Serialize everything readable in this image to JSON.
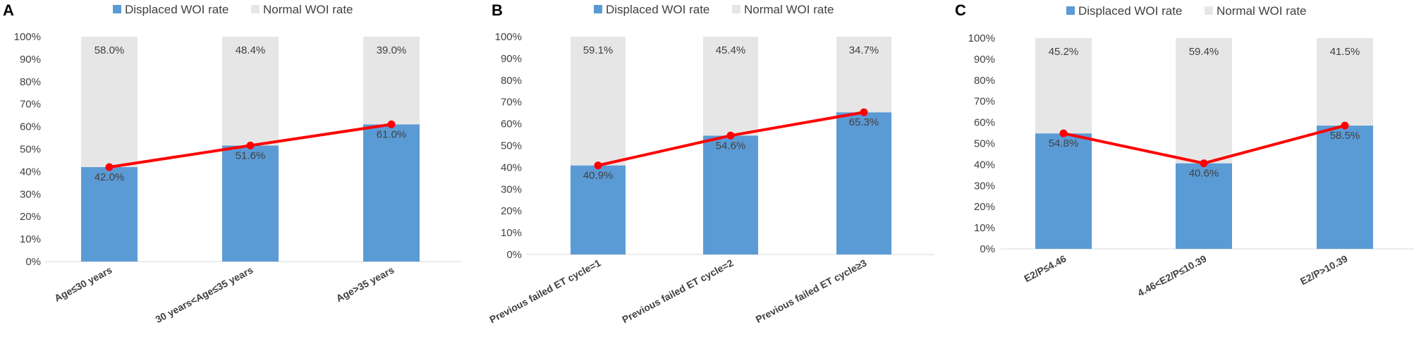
{
  "colors": {
    "displaced": "#5b9bd5",
    "normal": "#e7e6e6",
    "trend_line": "#ff0000",
    "axis_text": "#404040",
    "bar_label": "#404040",
    "axis_line": "#d9d9d9"
  },
  "chart_data": [
    {
      "type": "bar",
      "stacked": true,
      "panel_label": "A",
      "legend": [
        "Displaced WOI rate",
        "Normal WOI rate"
      ],
      "legend_placement": "top-center",
      "categories": [
        "Age≤30 years",
        "30 years<Age≤35 years",
        "Age>35 years"
      ],
      "series": [
        {
          "name": "Displaced WOI rate",
          "values": [
            42.0,
            51.6,
            61.0
          ],
          "labels": [
            "42.0%",
            "51.6%",
            "61.0%"
          ]
        },
        {
          "name": "Normal WOI rate",
          "values": [
            58.0,
            48.4,
            39.0
          ],
          "labels": [
            "58.0%",
            "48.4%",
            "39.0%"
          ]
        }
      ],
      "trend_line": {
        "series": "Displaced WOI rate",
        "values": [
          42.0,
          51.6,
          61.0
        ]
      },
      "ylim": [
        0,
        100
      ],
      "yticks": [
        "0%",
        "10%",
        "20%",
        "30%",
        "40%",
        "50%",
        "60%",
        "70%",
        "80%",
        "90%",
        "100%"
      ],
      "grid": false
    },
    {
      "type": "bar",
      "stacked": true,
      "panel_label": "B",
      "legend": [
        "Displaced WOI rate",
        "Normal WOI rate"
      ],
      "legend_placement": "top-center",
      "categories": [
        "Previous failed ET cycle=1",
        "Previous failed ET cycle=2",
        "Previous failed ET cycle≥3"
      ],
      "series": [
        {
          "name": "Displaced WOI rate",
          "values": [
            40.9,
            54.6,
            65.3
          ],
          "labels": [
            "40.9%",
            "54.6%",
            "65.3%"
          ]
        },
        {
          "name": "Normal WOI rate",
          "values": [
            59.1,
            45.4,
            34.7
          ],
          "labels": [
            "59.1%",
            "45.4%",
            "34.7%"
          ]
        }
      ],
      "trend_line": {
        "series": "Displaced WOI rate",
        "values": [
          40.9,
          54.6,
          65.3
        ]
      },
      "ylim": [
        0,
        100
      ],
      "yticks": [
        "0%",
        "10%",
        "20%",
        "30%",
        "40%",
        "50%",
        "60%",
        "70%",
        "80%",
        "90%",
        "100%"
      ],
      "grid": false
    },
    {
      "type": "bar",
      "stacked": true,
      "panel_label": "C",
      "legend": [
        "Displaced WOI rate",
        "Normal WOI rate"
      ],
      "legend_placement": "top-center",
      "categories": [
        "E2/P≤4.46",
        "4.46<E2/P≤10.39",
        "E2/P>10.39"
      ],
      "series": [
        {
          "name": "Displaced WOI rate",
          "values": [
            54.8,
            40.6,
            58.5
          ],
          "labels": [
            "54.8%",
            "40.6%",
            "58.5%"
          ]
        },
        {
          "name": "Normal WOI rate",
          "values": [
            45.2,
            59.4,
            41.5
          ],
          "labels": [
            "45.2%",
            "59.4%",
            "41.5%"
          ]
        }
      ],
      "trend_line": {
        "series": "Displaced WOI rate",
        "values": [
          54.8,
          40.6,
          58.5
        ]
      },
      "ylim": [
        0,
        100
      ],
      "yticks": [
        "0%",
        "10%",
        "20%",
        "30%",
        "40%",
        "50%",
        "60%",
        "70%",
        "80%",
        "90%",
        "100%"
      ],
      "grid": false
    }
  ]
}
